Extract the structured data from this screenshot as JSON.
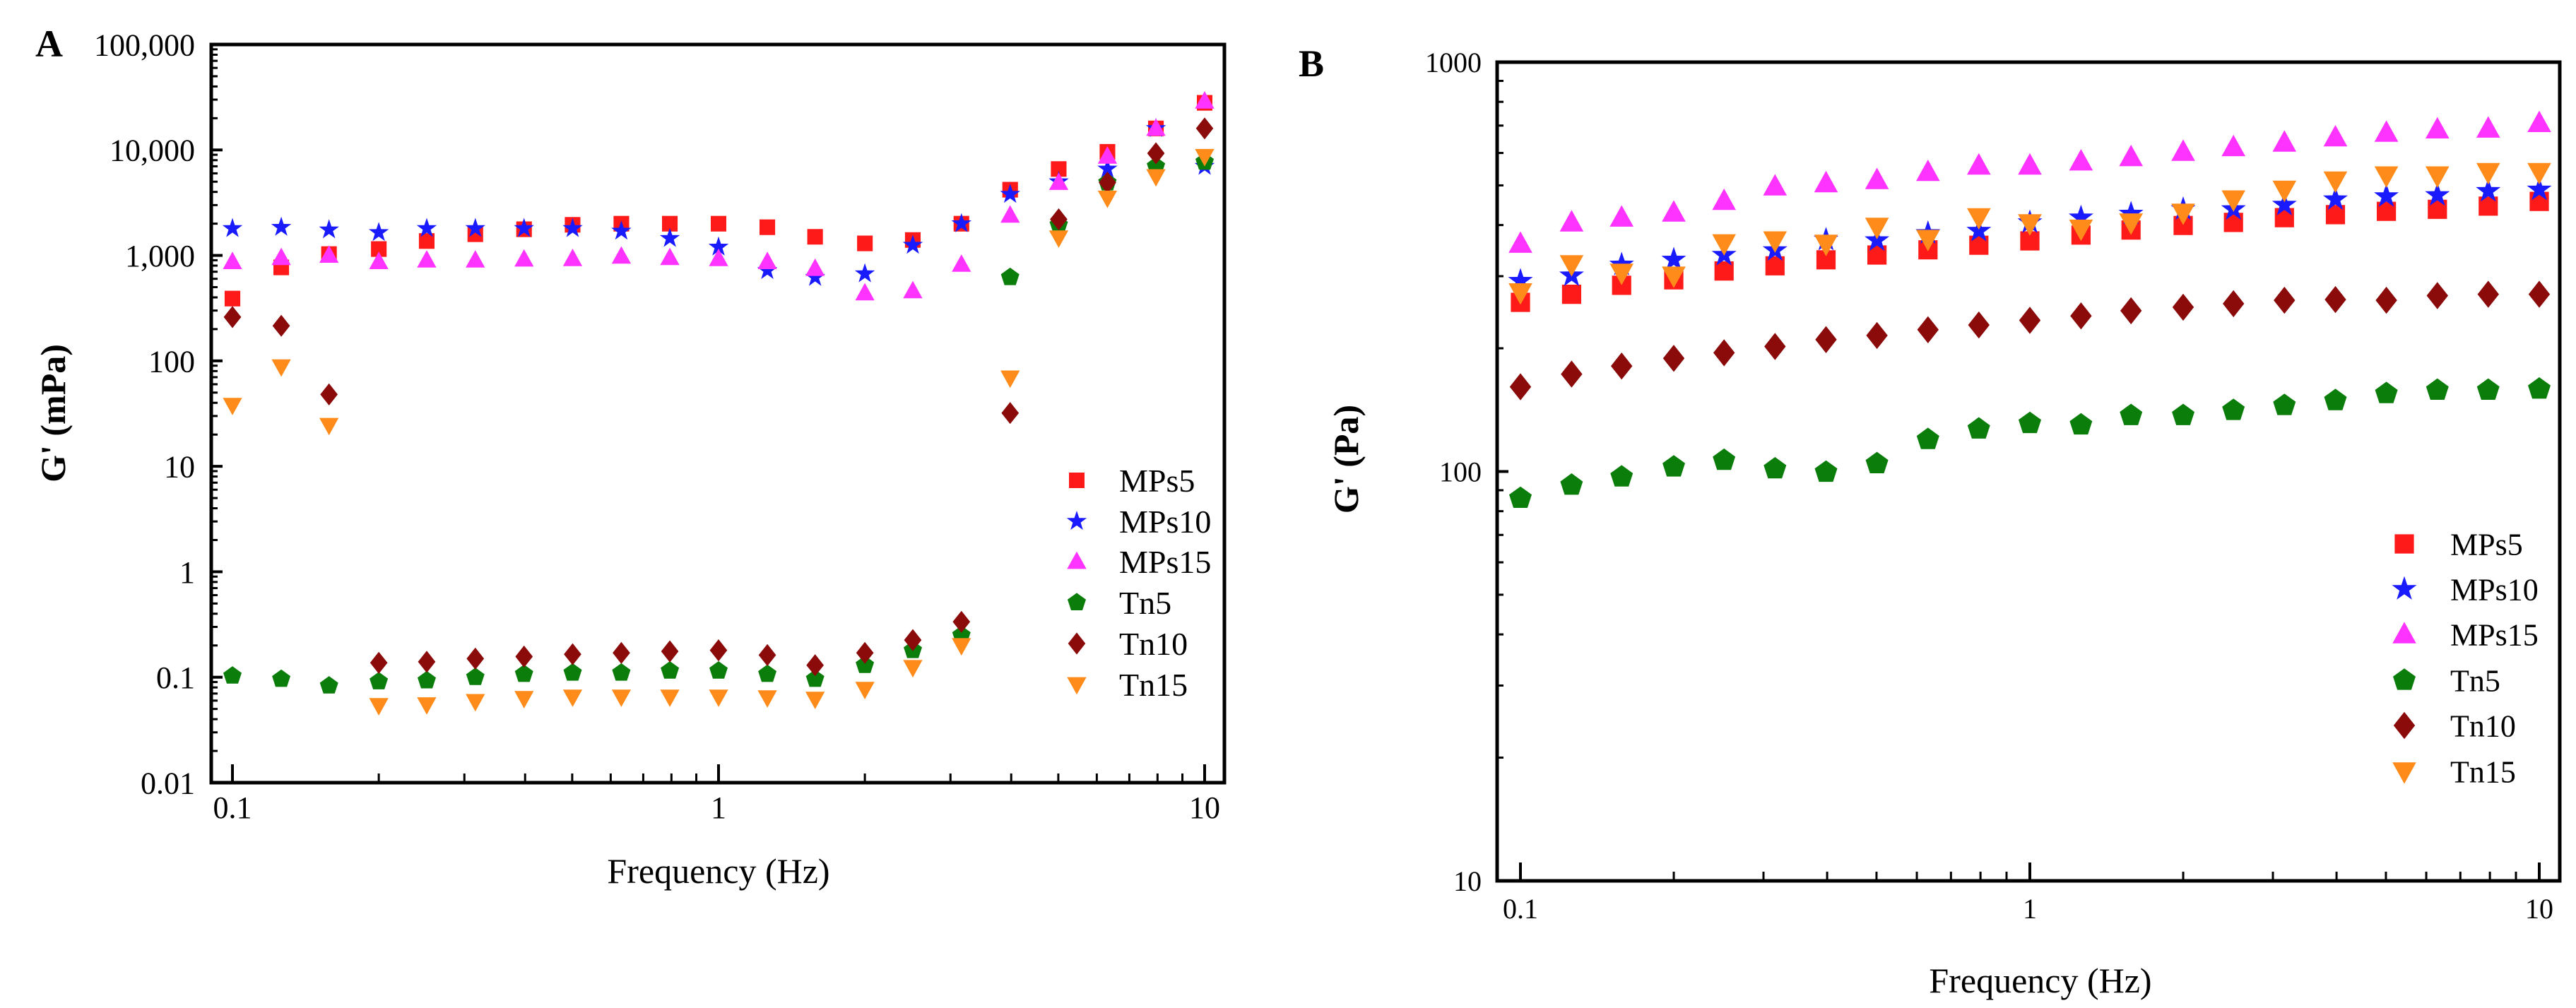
{
  "chart_data": [
    {
      "panel_label": "A",
      "type": "scatter",
      "xlabel": "Frequency (Hz)",
      "ylabel": "G' (mPa)",
      "xscale": "log",
      "yscale": "log",
      "xlim": [
        0.1,
        10
      ],
      "ylim": [
        0.01,
        100000
      ],
      "xticks": [
        0.1,
        1,
        10
      ],
      "xtick_labels": [
        "0.1",
        "1",
        "10"
      ],
      "yticks": [
        0.01,
        0.1,
        1,
        10,
        100,
        1000,
        10000,
        100000
      ],
      "ytick_labels": [
        "0.01",
        "0.1",
        "1",
        "10",
        "100",
        "1,000",
        "10,000",
        "100,000"
      ],
      "grid": false,
      "legend_position": "bottom-right",
      "x": [
        0.1,
        0.126,
        0.158,
        0.2,
        0.251,
        0.316,
        0.398,
        0.501,
        0.631,
        0.794,
        1,
        1.26,
        1.58,
        2,
        2.51,
        3.16,
        3.98,
        5.01,
        6.31,
        7.94,
        10
      ],
      "series": [
        {
          "name": "MPs5",
          "marker": "square",
          "color": "#ff1a1a",
          "values": [
            390,
            770,
            1030,
            1150,
            1370,
            1590,
            1770,
            1950,
            2000,
            2000,
            2000,
            1850,
            1500,
            1300,
            1400,
            2000,
            4200,
            6600,
            9600,
            16000,
            28000
          ]
        },
        {
          "name": "MPs10",
          "marker": "star",
          "color": "#1a1aff",
          "values": [
            1800,
            1850,
            1750,
            1650,
            1800,
            1800,
            1800,
            1800,
            1700,
            1450,
            1200,
            720,
            620,
            670,
            1250,
            2000,
            3800,
            5000,
            6600,
            16000,
            7000
          ]
        },
        {
          "name": "MPs15",
          "marker": "triangle-up",
          "color": "#ff33ff",
          "values": [
            870,
            950,
            1000,
            870,
            900,
            900,
            920,
            930,
            980,
            950,
            930,
            870,
            750,
            440,
            460,
            820,
            2400,
            4900,
            8700,
            16000,
            29000
          ]
        },
        {
          "name": "Tn5",
          "marker": "pentagon",
          "color": "#0a7d0a",
          "values": [
            0.103,
            0.096,
            0.083,
            0.091,
            0.093,
            0.1,
            0.107,
            0.11,
            0.11,
            0.115,
            0.115,
            0.107,
            0.096,
            0.13,
            0.18,
            0.25,
            620,
            1950,
            4900,
            7000,
            7700
          ]
        },
        {
          "name": "Tn10",
          "marker": "diamond",
          "color": "#8b0a0a",
          "values": [
            260,
            215,
            48,
            0.137,
            0.14,
            0.15,
            0.157,
            0.165,
            0.17,
            0.176,
            0.18,
            0.162,
            0.13,
            0.17,
            0.225,
            0.335,
            32,
            2200,
            4900,
            9300,
            16000
          ]
        },
        {
          "name": "Tn15",
          "marker": "triangle-down",
          "color": "#ff8c1a",
          "values": [
            38,
            88,
            24.5,
            0.054,
            0.055,
            0.059,
            0.063,
            0.065,
            0.065,
            0.065,
            0.065,
            0.064,
            0.062,
            0.077,
            0.124,
            0.2,
            69,
            1470,
            3500,
            5600,
            8700
          ]
        }
      ]
    },
    {
      "panel_label": "B",
      "type": "scatter",
      "xlabel": "Frequency (Hz)",
      "ylabel": "G' (Pa)",
      "xscale": "log",
      "yscale": "log",
      "xlim": [
        0.1,
        10
      ],
      "ylim": [
        10,
        1000
      ],
      "xticks": [
        0.1,
        1,
        10
      ],
      "xtick_labels": [
        "0.1",
        "1",
        "10"
      ],
      "yticks": [
        10,
        100,
        1000
      ],
      "ytick_labels": [
        "10",
        "100",
        "1000"
      ],
      "grid": false,
      "legend_position": "bottom-right",
      "x": [
        0.1,
        0.126,
        0.158,
        0.2,
        0.251,
        0.316,
        0.398,
        0.501,
        0.631,
        0.794,
        1,
        1.26,
        1.58,
        2,
        2.51,
        3.16,
        3.98,
        5.01,
        6.31,
        7.94,
        10
      ],
      "series": [
        {
          "name": "MPs5",
          "marker": "square",
          "color": "#ff1a1a",
          "values": [
            259,
            271,
            285,
            294,
            309,
            318,
            329,
            338,
            348,
            357,
            366,
            378,
            389,
            399,
            406,
            417,
            424,
            432,
            437,
            445,
            457
          ]
        },
        {
          "name": "MPs10",
          "marker": "star",
          "color": "#1a1aff",
          "values": [
            292,
            301,
            320,
            329,
            338,
            347,
            368,
            367,
            382,
            387,
            406,
            417,
            426,
            437,
            437,
            448,
            462,
            470,
            473,
            484,
            488
          ]
        },
        {
          "name": "MPs15",
          "marker": "triangle-up",
          "color": "#ff33ff",
          "values": [
            360,
            406,
            417,
            429,
            458,
            497,
            506,
            515,
            539,
            559,
            559,
            572,
            586,
            604,
            620,
            636,
            655,
            672,
            685,
            688,
            710
          ]
        },
        {
          "name": "Tn5",
          "marker": "pentagon",
          "color": "#0a7d0a",
          "values": [
            86,
            92.6,
            97,
            102.6,
            106.5,
            101.5,
            99.6,
            104.5,
            119.7,
            127,
            131,
            130,
            137,
            137,
            141,
            145,
            149,
            155,
            158,
            158,
            159
          ]
        },
        {
          "name": "Tn10",
          "marker": "diamond",
          "color": "#8b0a0a",
          "values": [
            161,
            173,
            181,
            189,
            195,
            202,
            210,
            215,
            222,
            228,
            234,
            240,
            247,
            252,
            257,
            262,
            263,
            262,
            269,
            271,
            271
          ]
        },
        {
          "name": "Tn15",
          "marker": "triangle-down",
          "color": "#ff8c1a",
          "values": [
            274,
            321,
            306,
            301,
            361,
            367,
            360,
            396,
            370,
            418,
            404,
            392,
            406,
            429,
            462,
            488,
            514,
            529,
            529,
            539,
            539
          ]
        }
      ]
    }
  ]
}
